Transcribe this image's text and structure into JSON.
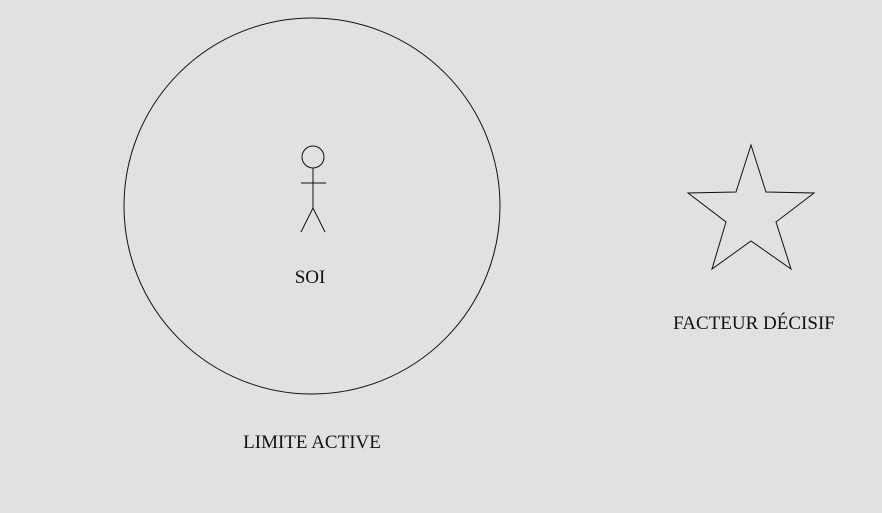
{
  "diagram": {
    "self_label": "SOI",
    "boundary_label": "LIMITE ACTIVE",
    "factor_label": "FACTEUR DÉCISIF"
  },
  "colors": {
    "background": "#e1e1e1",
    "stroke": "#111111",
    "text": "#111111"
  },
  "icons": {
    "person": "stick-figure-icon",
    "star": "star-icon"
  }
}
